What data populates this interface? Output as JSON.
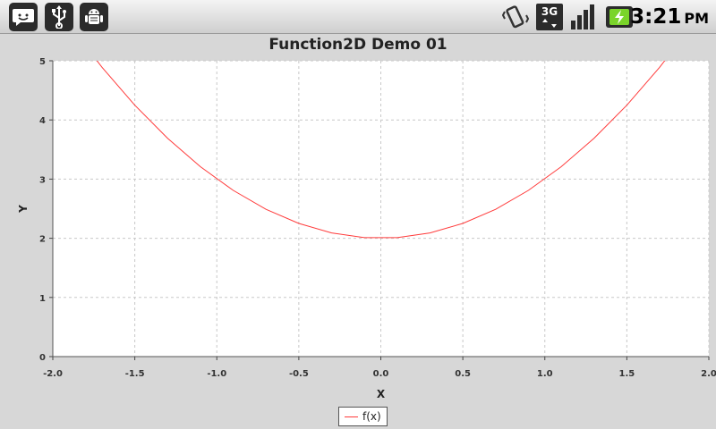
{
  "status_bar": {
    "left_icons": [
      "chat-bubble-icon",
      "usb-icon",
      "android-debug-icon"
    ],
    "right_icons": [
      "vibrate-icon",
      "3g-signal-icon",
      "signal-strength-icon",
      "battery-charging-icon"
    ],
    "network_label": "3G",
    "time": "3:21",
    "ampm": "PM"
  },
  "colors": {
    "series": "#ff3b3b",
    "plot_background": "#ffffff",
    "chart_background": "#d7d7d7",
    "grid": "#c8c8c8",
    "status_icon": "#2b2b2b",
    "battery_accent": "#7ad42a"
  },
  "chart_data": {
    "type": "line",
    "title": "Function2D Demo 01",
    "xlabel": "X",
    "ylabel": "Y",
    "xlim": [
      -2.0,
      2.0
    ],
    "ylim": [
      0,
      5
    ],
    "x_ticks": [
      -2.0,
      -1.5,
      -1.0,
      -0.5,
      0.0,
      0.5,
      1.0,
      1.5,
      2.0
    ],
    "x_tick_labels": [
      "-2.0",
      "-1.5",
      "-1.0",
      "-0.5",
      "0.0",
      "0.5",
      "1.0",
      "1.5",
      "2.0"
    ],
    "y_ticks": [
      0,
      1,
      2,
      3,
      4,
      5
    ],
    "y_tick_labels": [
      "0",
      "1",
      "2",
      "3",
      "4",
      "5"
    ],
    "grid": true,
    "legend_position": "bottom-center",
    "series": [
      {
        "name": "f(x)",
        "color": "#ff3b3b",
        "x": [
          -1.9,
          -1.7,
          -1.5,
          -1.3,
          -1.1,
          -0.9,
          -0.7,
          -0.5,
          -0.3,
          -0.1,
          0.1,
          0.3,
          0.5,
          0.7,
          0.9,
          1.1,
          1.3,
          1.5,
          1.7,
          1.9
        ],
        "y": [
          5.61,
          4.89,
          4.25,
          3.69,
          3.21,
          2.81,
          2.49,
          2.25,
          2.09,
          2.01,
          2.01,
          2.09,
          2.25,
          2.49,
          2.81,
          3.21,
          3.69,
          4.25,
          4.89,
          5.61
        ]
      }
    ]
  }
}
